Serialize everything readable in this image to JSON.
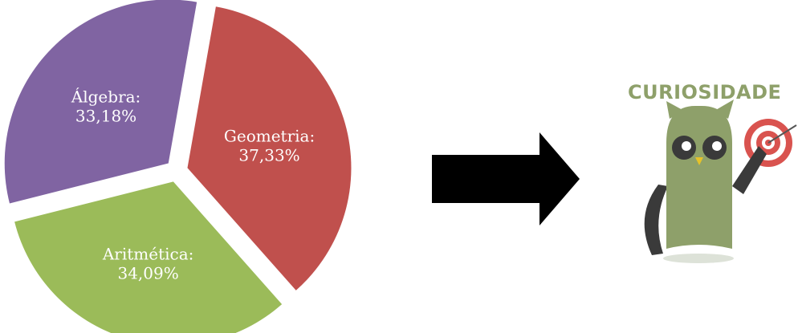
{
  "chart_data": {
    "type": "pie",
    "title": "",
    "slices": [
      {
        "category": "Geometria",
        "value": 37.33,
        "color": "#c0504d",
        "label_line1": "Geometria:",
        "label_line2": "37,33%"
      },
      {
        "category": "Aritmética",
        "value": 34.09,
        "color": "#9bbb59",
        "label_line1": "Aritmética:",
        "label_line2": "34,09%"
      },
      {
        "category": "Álgebra",
        "value": 33.18,
        "color": "#8064a2",
        "label_line1": "Álgebra:",
        "label_line2": "33,18%"
      }
    ]
  },
  "arrow": {
    "color": "#000000"
  },
  "curiosity_badge": {
    "title": "CURIOSIDADE",
    "owl_color": "#8ea06a",
    "wing_color": "#3a3a3a",
    "target_color": "#d9534f"
  }
}
